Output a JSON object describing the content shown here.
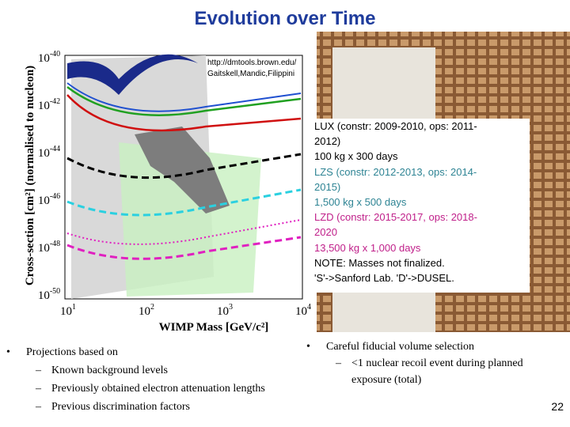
{
  "title": "Evolution over Time",
  "figure": {
    "url": "http://dmtools.brown.edu/",
    "authors": "Gaitskell,Mandic,Filippini",
    "y_label": "Cross-section [cm²] (normalised to nucleon)",
    "x_label": "WIMP Mass [GeV/c²]",
    "y_ticks": [
      {
        "base": "10",
        "exp": "-40"
      },
      {
        "base": "10",
        "exp": "-42"
      },
      {
        "base": "10",
        "exp": "-44"
      },
      {
        "base": "10",
        "exp": "-46"
      },
      {
        "base": "10",
        "exp": "-48"
      },
      {
        "base": "10",
        "exp": "-50"
      }
    ],
    "x_ticks": [
      {
        "base": "10",
        "exp": "1"
      },
      {
        "base": "10",
        "exp": "2"
      },
      {
        "base": "10",
        "exp": "3"
      },
      {
        "base": "10",
        "exp": "4"
      }
    ]
  },
  "note": {
    "lines": [
      {
        "text": "LUX (constr: 2009-2010, ops: 2011-",
        "color": "#000000"
      },
      {
        "text": "2012)",
        "color": "#000000"
      },
      {
        "text": "100 kg x 300 days",
        "color": "#000000"
      },
      {
        "text": "LZS (constr: 2012-2013, ops: 2014-",
        "color": "#2e8494"
      },
      {
        "text": "2015)",
        "color": "#2e8494"
      },
      {
        "text": "1,500 kg x 500 days",
        "color": "#2e8494"
      },
      {
        "text": "LZD (constr: 2015-2017, ops: 2018-",
        "color": "#c0208a"
      },
      {
        "text": "2020",
        "color": "#c0208a"
      },
      {
        "text": "13,500 kg x 1,000 days",
        "color": "#c0208a"
      },
      {
        "text": "NOTE: Masses not finalized.",
        "color": "#000000"
      },
      {
        "text": "'S'->Sanford Lab. 'D'->DUSEL.",
        "color": "#000000"
      }
    ]
  },
  "left_bullet": {
    "text": "Projections based on",
    "sub": [
      "Known background levels",
      "Previously obtained electron attenuation lengths",
      "Previous discrimination factors"
    ]
  },
  "right_bullet": {
    "text": "Careful fiducial volume selection",
    "sub": [
      "<1 nuclear recoil event during planned exposure (total)"
    ]
  },
  "page_number": "22"
}
